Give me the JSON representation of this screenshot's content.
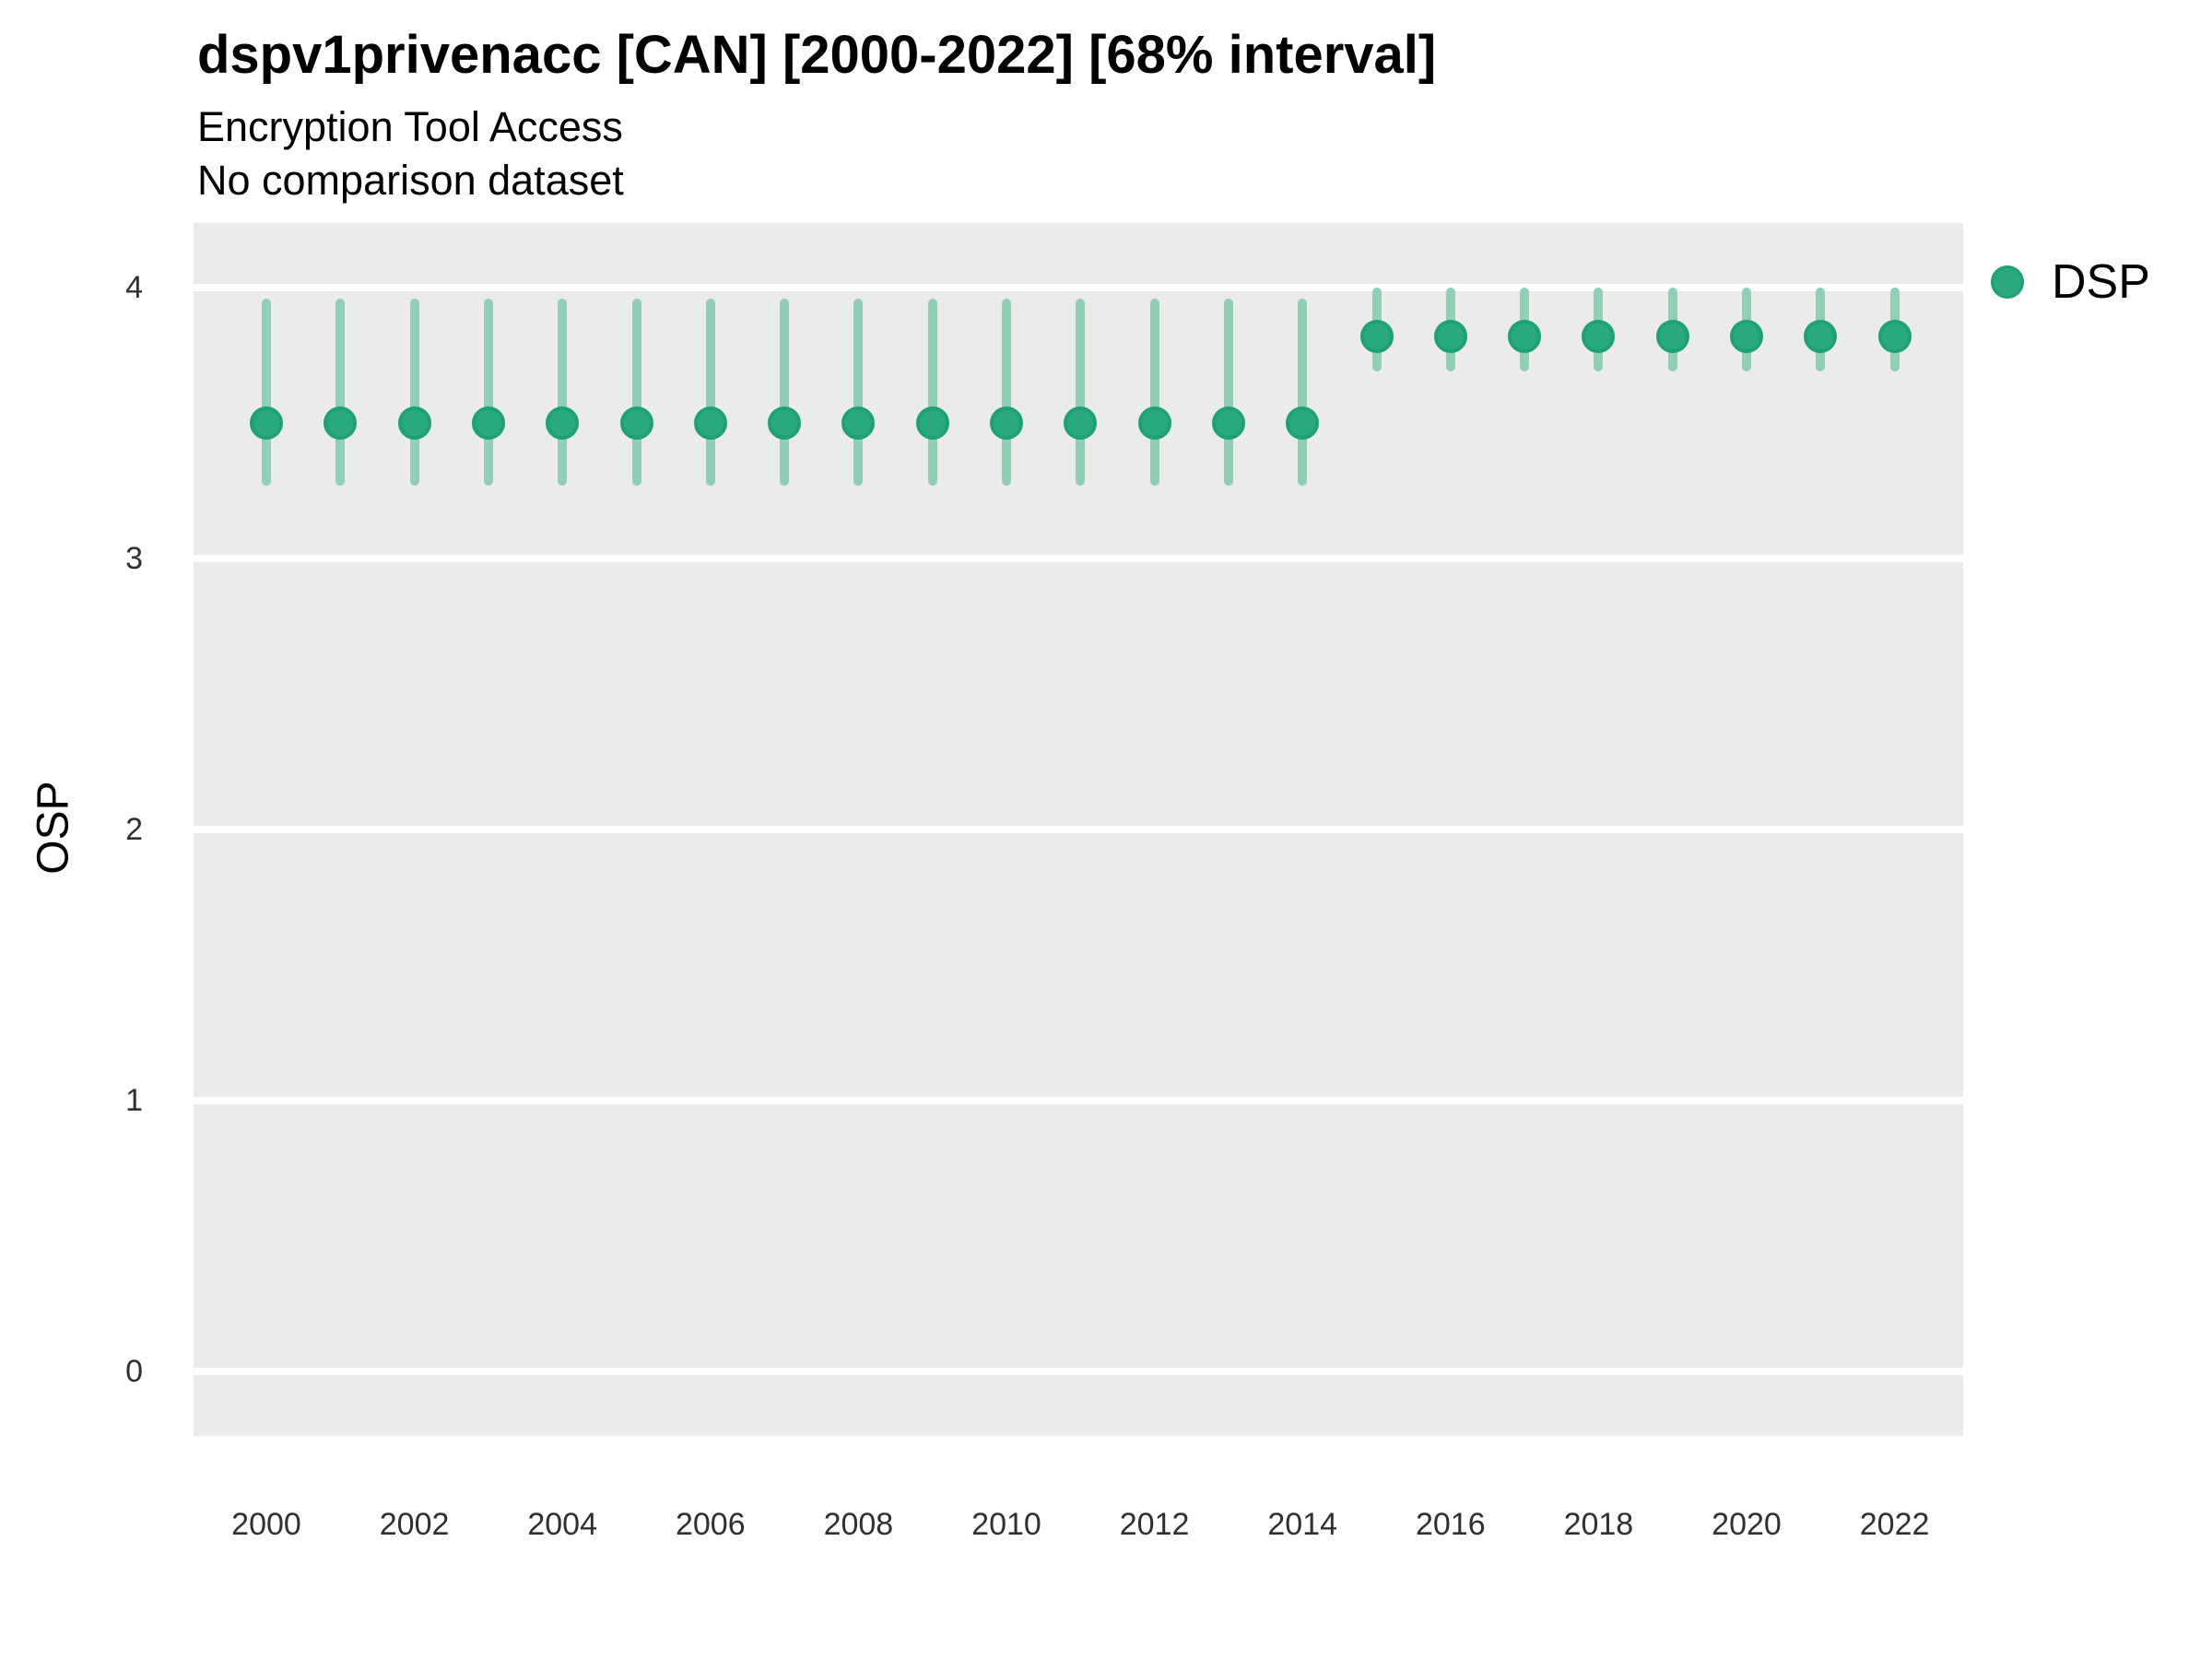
{
  "header": {
    "title": "dspv1privenacc [CAN] [2000-2022] [68% interval]",
    "subtitle": "Encryption Tool Access",
    "note": "No comparison dataset"
  },
  "axes": {
    "y_label": "OSP"
  },
  "legend": {
    "items": [
      {
        "label": "DSP",
        "marker": "circle-icon"
      }
    ]
  },
  "colors": {
    "plot_background": "#EBEBEB",
    "gridline": "#FFFFFF",
    "point_fill": "#2AA97D",
    "point_stroke": "#1EA173",
    "errorbar": "#90CFB5",
    "title_text": "#000000",
    "tick_text": "#303030"
  },
  "chart_data": {
    "type": "scatter",
    "title": "dspv1privenacc [CAN] [2000-2022] [68% interval]",
    "subtitle": "Encryption Tool Access",
    "annotation": "No comparison dataset",
    "interval": "68%",
    "xlabel": "",
    "ylabel": "OSP",
    "ylim": [
      -0.25,
      4.25
    ],
    "y_ticks": [
      0,
      1,
      2,
      3,
      4
    ],
    "x_tick_labels": [
      2000,
      2002,
      2004,
      2006,
      2008,
      2010,
      2012,
      2014,
      2016,
      2018,
      2020,
      2022
    ],
    "grid": true,
    "legend_position": "right",
    "series": [
      {
        "name": "DSP",
        "x": [
          2000,
          2001,
          2002,
          2003,
          2004,
          2005,
          2006,
          2007,
          2008,
          2009,
          2010,
          2011,
          2012,
          2013,
          2014,
          2015,
          2016,
          2017,
          2018,
          2019,
          2020,
          2021,
          2022
        ],
        "y": [
          3.5,
          3.5,
          3.5,
          3.5,
          3.5,
          3.5,
          3.5,
          3.5,
          3.5,
          3.5,
          3.5,
          3.5,
          3.5,
          3.5,
          3.5,
          3.82,
          3.82,
          3.82,
          3.82,
          3.82,
          3.82,
          3.82,
          3.82
        ],
        "y_lo": [
          3.27,
          3.27,
          3.27,
          3.27,
          3.27,
          3.27,
          3.27,
          3.27,
          3.27,
          3.27,
          3.27,
          3.27,
          3.27,
          3.27,
          3.27,
          3.69,
          3.69,
          3.69,
          3.69,
          3.69,
          3.69,
          3.69,
          3.69
        ],
        "y_hi": [
          3.96,
          3.96,
          3.96,
          3.96,
          3.96,
          3.96,
          3.96,
          3.96,
          3.96,
          3.96,
          3.96,
          3.96,
          3.96,
          3.96,
          3.96,
          4.0,
          4.0,
          4.0,
          4.0,
          4.0,
          4.0,
          4.0,
          4.0
        ]
      }
    ]
  }
}
